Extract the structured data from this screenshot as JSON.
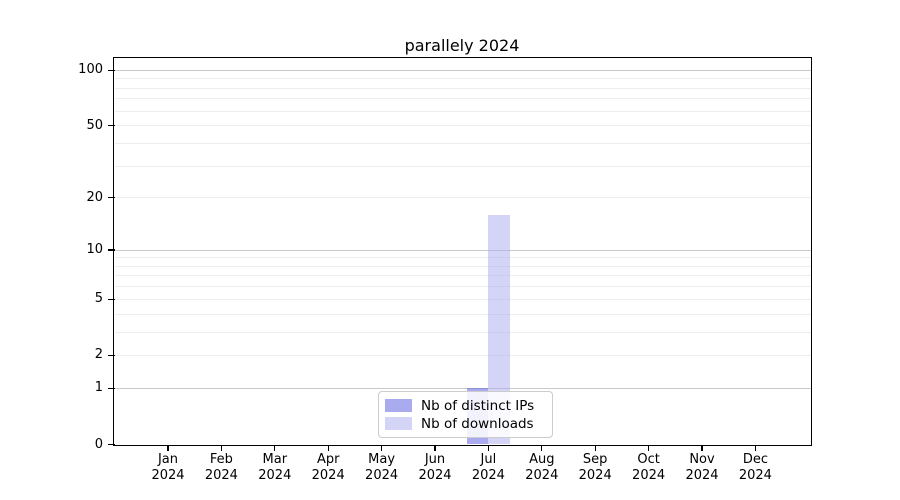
{
  "chart_data": {
    "type": "bar",
    "title": "parallely 2024",
    "categories": [
      "Jan 2024",
      "Feb 2024",
      "Mar 2024",
      "Apr 2024",
      "May 2024",
      "Jun 2024",
      "Jul 2024",
      "Aug 2024",
      "Sep 2024",
      "Oct 2024",
      "Nov 2024",
      "Dec 2024"
    ],
    "series": [
      {
        "name": "Nb of distinct IPs",
        "color": "#aaaaee",
        "color_rgba": "rgba(85,85,221,0.5)",
        "values": [
          0,
          0,
          0,
          0,
          0,
          0,
          1,
          0,
          0,
          0,
          0,
          0
        ]
      },
      {
        "name": "Nb of downloads",
        "color": "#d4d4f6",
        "color_rgba": "rgba(170,170,238,0.5)",
        "values": [
          0,
          0,
          0,
          0,
          0,
          0,
          16,
          0,
          0,
          0,
          0,
          0
        ]
      }
    ],
    "xlabel": "",
    "ylabel": "",
    "yscale": "log1p",
    "ylim": [
      0,
      116
    ],
    "yticks": [
      0,
      1,
      2,
      5,
      10,
      20,
      50,
      100
    ],
    "grid": {
      "major_values": [
        1,
        10,
        100
      ],
      "minor_values": [
        2,
        3,
        4,
        5,
        6,
        7,
        8,
        9,
        20,
        30,
        40,
        50,
        60,
        70,
        80,
        90
      ],
      "major_color": "#c9c9c9",
      "minor_color": "#ededed"
    },
    "legend_position": "lower center",
    "bar_width_fraction": 0.4,
    "colors": {
      "axis": "#000000",
      "background": "#ffffff",
      "legend_border": "#cccccc"
    }
  }
}
